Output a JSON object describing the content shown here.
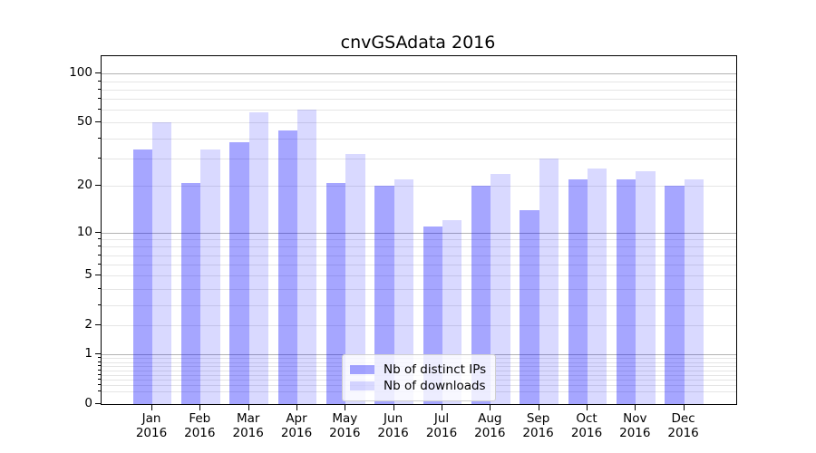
{
  "title": "cnvGSAdata 2016",
  "chart_data": {
    "type": "bar",
    "title": "cnvGSAdata 2016",
    "categories": [
      "Jan 2016",
      "Feb 2016",
      "Mar 2016",
      "Apr 2016",
      "May 2016",
      "Jun 2016",
      "Jul 2016",
      "Aug 2016",
      "Sep 2016",
      "Oct 2016",
      "Nov 2016",
      "Dec 2016"
    ],
    "series": [
      {
        "name": "Nb of distinct IPs",
        "color": "rgba(0,0,255,0.35)",
        "values": [
          34,
          21,
          38,
          45,
          21,
          20,
          11,
          20,
          14,
          22,
          22,
          20
        ]
      },
      {
        "name": "Nb of downloads",
        "color": "rgba(0,0,255,0.15)",
        "values": [
          50,
          34,
          58,
          60,
          32,
          22,
          12,
          24,
          30,
          26,
          25,
          22
        ]
      }
    ],
    "xlabel": "",
    "ylabel": "",
    "yscale": "log1p",
    "ylim": [
      0,
      128
    ],
    "ytick_labels": [
      "100",
      "50",
      "20",
      "10",
      "5",
      "2",
      "1",
      "0"
    ],
    "ytick_values": [
      100,
      50,
      20,
      10,
      5,
      2,
      1,
      0
    ],
    "major_gridlines": [
      1,
      10,
      100
    ],
    "minor_gridlines": [
      0.2,
      0.3,
      0.4,
      0.5,
      0.6,
      0.7,
      0.8,
      0.9,
      2,
      3,
      4,
      5,
      6,
      7,
      8,
      9,
      20,
      30,
      40,
      50,
      60,
      70,
      80,
      90
    ],
    "grid": true,
    "legend_position": "lower center",
    "legend_items": [
      "Nb of distinct IPs",
      "Nb of downloads"
    ]
  },
  "colors": {
    "bar_distinct_ips": "rgba(0,0,255,0.35)",
    "bar_downloads": "rgba(0,0,255,0.15)",
    "grid_major": "#b3b3b3",
    "grid_minor": "#e5e5e5",
    "axis": "#000000",
    "legend_border": "#cfcfcf"
  }
}
